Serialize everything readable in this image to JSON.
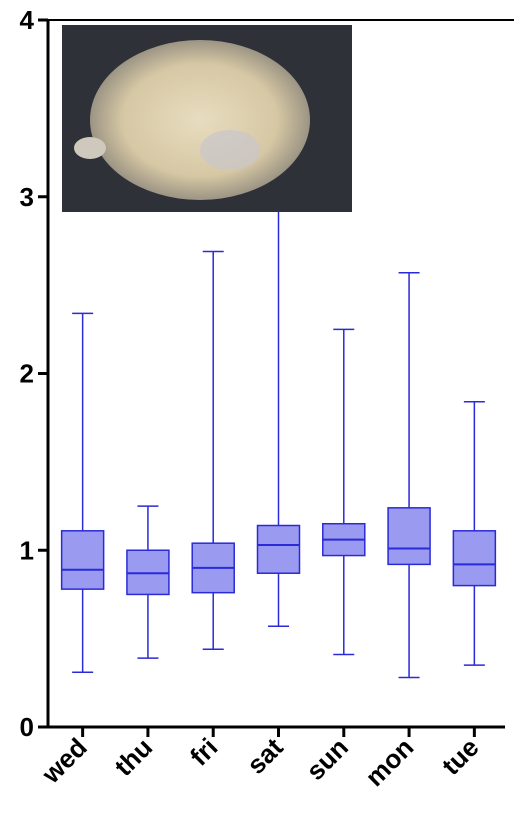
{
  "chart_data": {
    "type": "box",
    "categories": [
      "wed",
      "thu",
      "fri",
      "sat",
      "sun",
      "mon",
      "tue"
    ],
    "boxes": [
      {
        "min": 0.31,
        "q1": 0.78,
        "median": 0.89,
        "q3": 1.11,
        "max": 2.34
      },
      {
        "min": 0.39,
        "q1": 0.75,
        "median": 0.87,
        "q3": 1.0,
        "max": 1.25
      },
      {
        "min": 0.44,
        "q1": 0.76,
        "median": 0.9,
        "q3": 1.04,
        "max": 2.69
      },
      {
        "min": 0.57,
        "q1": 0.87,
        "median": 1.03,
        "q3": 1.14,
        "max": 3.1
      },
      {
        "min": 0.41,
        "q1": 0.97,
        "median": 1.06,
        "q3": 1.15,
        "max": 2.25
      },
      {
        "min": 0.28,
        "q1": 0.92,
        "median": 1.01,
        "q3": 1.24,
        "max": 2.57
      },
      {
        "min": 0.35,
        "q1": 0.8,
        "median": 0.92,
        "q3": 1.11,
        "max": 1.84
      }
    ],
    "color": "#9a9af0",
    "edge_color": "#2a2ad8",
    "ylim": [
      0,
      4
    ],
    "yticks": [
      0,
      1,
      2,
      3,
      4
    ]
  }
}
